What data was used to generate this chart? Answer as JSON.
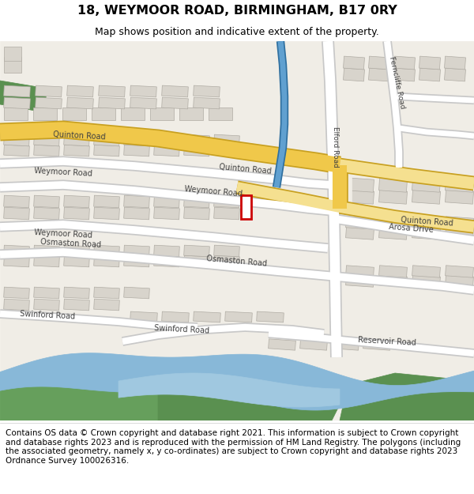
{
  "title_line1": "18, WEYMOOR ROAD, BIRMINGHAM, B17 0RY",
  "title_line2": "Map shows position and indicative extent of the property.",
  "footer_text": "Contains OS data © Crown copyright and database right 2021. This information is subject to Crown copyright and database rights 2023 and is reproduced with the permission of HM Land Registry. The polygons (including the associated geometry, namely x, y co-ordinates) are subject to Crown copyright and database rights 2023 Ordnance Survey 100026316.",
  "map_bg": "#f0ede6",
  "road_white": "#ffffff",
  "road_outline": "#c8c8c8",
  "road_yellow": "#f0c84a",
  "road_yellow_light": "#f5e090",
  "road_yellow_outline": "#c8a020",
  "green_dark": "#5a9050",
  "green_light": "#7ab870",
  "water_blue": "#88b8d8",
  "water_blue2": "#a0c8e0",
  "blue_road": "#60a0d0",
  "highlight_color": "#cc0000",
  "building_fill": "#d8d4cc",
  "building_edge": "#b0aca4",
  "title_fontsize": 11.5,
  "subtitle_fontsize": 9,
  "footer_fontsize": 7.5,
  "label_fontsize": 7,
  "label_color": "#404040"
}
